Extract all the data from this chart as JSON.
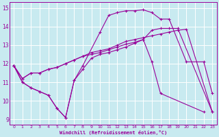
{
  "xlabel": "Windchill (Refroidissement éolien,°C)",
  "background_color": "#c8eaf0",
  "grid_color": "#ffffff",
  "line_color": "#990099",
  "xlim": [
    -0.5,
    23.5
  ],
  "ylim": [
    8.7,
    15.3
  ],
  "yticks": [
    9,
    10,
    11,
    12,
    13,
    14,
    15
  ],
  "xticks": [
    0,
    1,
    2,
    3,
    4,
    5,
    6,
    7,
    8,
    9,
    10,
    11,
    12,
    13,
    14,
    15,
    16,
    17,
    18,
    19,
    20,
    21,
    22,
    23
  ],
  "series": [
    {
      "x": [
        0,
        1,
        2,
        3,
        4,
        5,
        6,
        7,
        8,
        9,
        10,
        11,
        12,
        13,
        14,
        15,
        16,
        17,
        22
      ],
      "y": [
        11.9,
        11.0,
        10.7,
        10.5,
        10.3,
        9.6,
        9.1,
        11.1,
        11.7,
        12.3,
        12.5,
        12.6,
        12.75,
        12.9,
        13.1,
        13.3,
        12.1,
        10.4,
        9.4
      ]
    },
    {
      "x": [
        0,
        1,
        2,
        3,
        4,
        5,
        6,
        7,
        8,
        10,
        11,
        12,
        13,
        14,
        15,
        16,
        17,
        18,
        20,
        22,
        23
      ],
      "y": [
        11.9,
        11.0,
        10.7,
        10.5,
        10.3,
        9.6,
        9.1,
        11.1,
        11.9,
        13.7,
        14.6,
        14.75,
        14.85,
        14.85,
        14.9,
        14.75,
        14.4,
        14.4,
        12.1,
        12.1,
        10.4
      ]
    },
    {
      "x": [
        0,
        1,
        2,
        3,
        4,
        5,
        6,
        7,
        8,
        9,
        10,
        11,
        12,
        13,
        14,
        15,
        16,
        17,
        18,
        19,
        20,
        23
      ],
      "y": [
        11.9,
        11.2,
        11.5,
        11.5,
        11.7,
        11.8,
        12.0,
        12.2,
        12.4,
        12.6,
        12.7,
        12.8,
        13.0,
        13.2,
        13.3,
        13.4,
        13.5,
        13.6,
        13.7,
        13.8,
        13.85,
        9.4
      ]
    },
    {
      "x": [
        0,
        1,
        2,
        3,
        4,
        5,
        6,
        7,
        8,
        9,
        10,
        11,
        12,
        13,
        14,
        15,
        16,
        17,
        18,
        19,
        23
      ],
      "y": [
        11.9,
        11.2,
        11.5,
        11.5,
        11.7,
        11.8,
        12.0,
        12.2,
        12.4,
        12.5,
        12.6,
        12.75,
        12.9,
        13.05,
        13.15,
        13.3,
        13.8,
        13.9,
        13.9,
        13.9,
        9.4
      ]
    }
  ]
}
